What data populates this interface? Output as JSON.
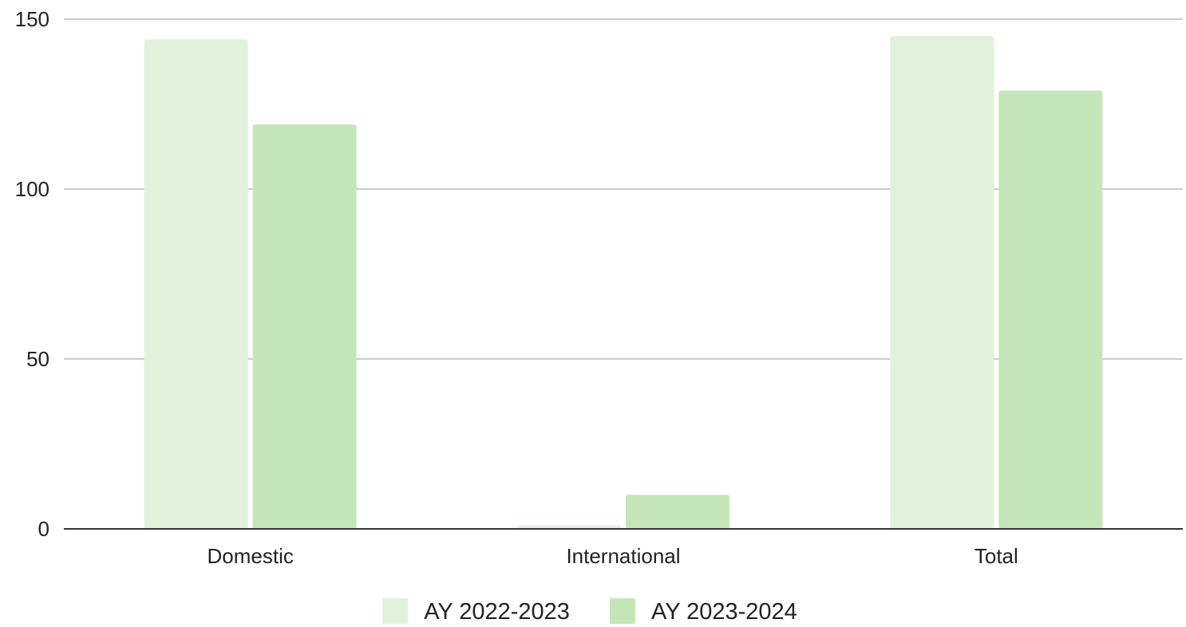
{
  "chart_data": {
    "type": "bar",
    "title": "",
    "xlabel": "",
    "ylabel": "",
    "categories": [
      "Domestic",
      "International",
      "Total"
    ],
    "series": [
      {
        "name": "AY 2022-2023",
        "values": [
          144,
          1,
          145
        ],
        "color": "#e0f2dc"
      },
      {
        "name": "AY 2023-2024",
        "values": [
          119,
          10,
          129
        ],
        "color": "#c5e6b8"
      }
    ],
    "ylim": [
      0,
      150
    ],
    "yticks": [
      0,
      50,
      100,
      150
    ],
    "grid": true,
    "legend_position": "bottom"
  }
}
